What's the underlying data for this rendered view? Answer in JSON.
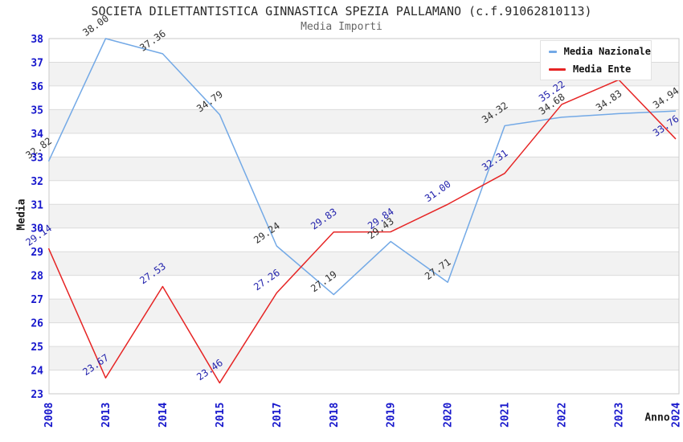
{
  "header": {
    "title": "SOCIETA DILETTANTISTICA GINNASTICA SPEZIA PALLAMANO (c.f.91062810113)",
    "subtitle": "Media Importi"
  },
  "axes": {
    "y_title": "Media",
    "x_title": "Anno",
    "tick_label_color": "#1616CC"
  },
  "legend": {
    "position": "top-right",
    "items": [
      {
        "label": "Media Nazionale",
        "color": "#73A9E6"
      },
      {
        "label": "Media Ente",
        "color": "#E62424"
      }
    ]
  },
  "chart_data": {
    "type": "line",
    "title": "SOCIETA DILETTANTISTICA GINNASTICA SPEZIA PALLAMANO (c.f.91062810113)",
    "subtitle": "Media Importi",
    "xlabel": "Anno",
    "ylabel": "Media",
    "categories": [
      "2008",
      "2013",
      "2014",
      "2015",
      "2017",
      "2018",
      "2019",
      "2020",
      "2021",
      "2022",
      "2023",
      "2024"
    ],
    "series": [
      {
        "name": "Media Nazionale",
        "color": "#73A9E6",
        "label_color": "#333333",
        "values": [
          32.82,
          38.0,
          37.36,
          34.79,
          29.24,
          27.19,
          29.43,
          27.71,
          34.32,
          34.68,
          34.83,
          34.94
        ],
        "labels": [
          "32.82",
          "38.00",
          "37.36",
          "34.79",
          "29.24",
          "27.19",
          "29.43",
          "27.71",
          "34.32",
          "34.68",
          "34.83",
          "34.94"
        ]
      },
      {
        "name": "Media Ente",
        "color": "#E62424",
        "label_color": "#2424AD",
        "values": [
          29.14,
          23.67,
          27.53,
          23.46,
          27.26,
          29.83,
          29.84,
          31.0,
          32.31,
          35.22,
          36.26,
          33.76
        ],
        "labels": [
          "29.14",
          "23.67",
          "27.53",
          "23.46",
          "27.26",
          "29.83",
          "29.84",
          "31.00",
          "32.31",
          "35.22",
          null,
          "33.76"
        ]
      }
    ],
    "ylim": [
      23,
      38
    ],
    "yticks": [
      23,
      24,
      25,
      26,
      27,
      28,
      29,
      30,
      31,
      32,
      33,
      34,
      35,
      36,
      37,
      38
    ],
    "grid": "horizontal",
    "stripes": true,
    "legend_position": "top-right",
    "style": {
      "stripe_color": "#F2F2F2",
      "grid_color": "#DBDBDB",
      "border_color": "#C9C9C9",
      "label_rotation_deg": -35,
      "xtick_rotation_deg": -90
    }
  }
}
